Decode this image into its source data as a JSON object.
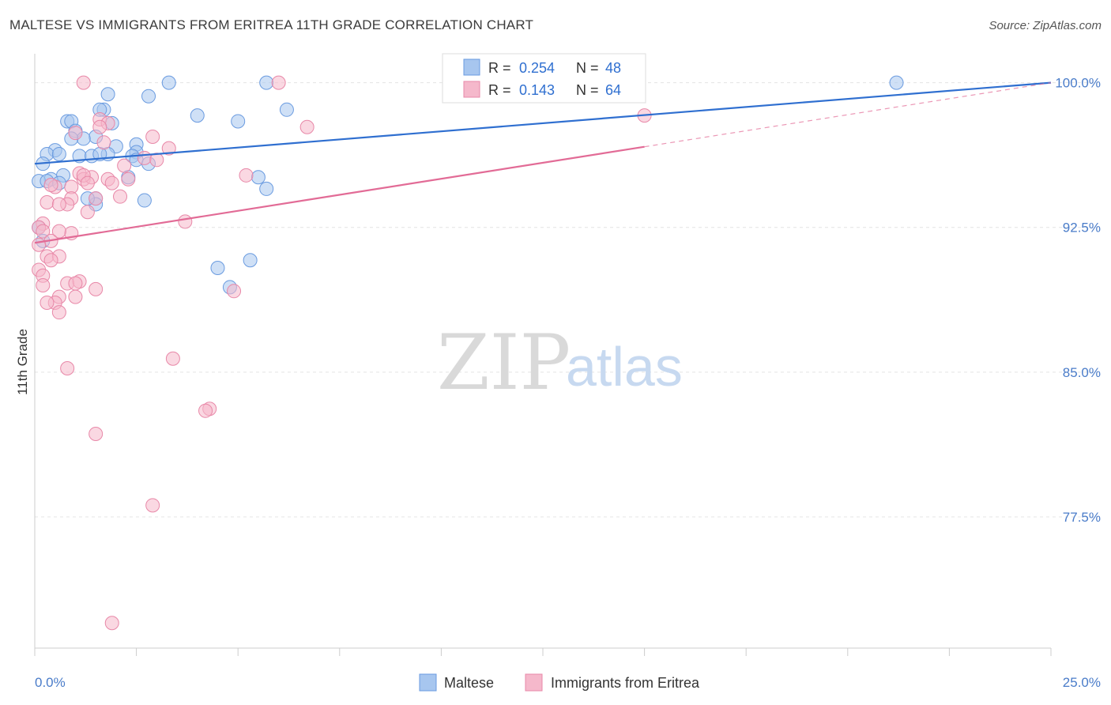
{
  "title": "MALTESE VS IMMIGRANTS FROM ERITREA 11TH GRADE CORRELATION CHART",
  "source": "Source: ZipAtlas.com",
  "watermark": {
    "zip": "ZIP",
    "atlas": "atlas"
  },
  "chart_data": {
    "type": "scatter",
    "ylabel": "11th Grade",
    "xlim": [
      0,
      25
    ],
    "ylim": [
      70.7,
      101.5
    ],
    "x_tick_labels": [
      "0.0%",
      "25.0%"
    ],
    "y_ticks": [
      100.0,
      92.5,
      85.0,
      77.5
    ],
    "y_tick_labels": [
      "100.0%",
      "92.5%",
      "85.0%",
      "77.5%"
    ],
    "grid": true,
    "legend_stats": [
      {
        "r_label": "R =",
        "r": "0.254",
        "n_label": "N =",
        "n": "48",
        "color": "#a7c6ef"
      },
      {
        "r_label": "R =",
        "r": "0.143",
        "n_label": "N =",
        "n": "64",
        "color": "#f5b8cb"
      }
    ],
    "series": [
      {
        "name": "Maltese",
        "color": "#a7c6ef",
        "stroke": "#6a9be0",
        "trend": {
          "color": "#2f6fd0",
          "x": [
            0,
            25
          ],
          "y": [
            95.8,
            100.0
          ],
          "solid_to": 25
        },
        "points": [
          [
            3.3,
            100.0
          ],
          [
            5.7,
            100.0
          ],
          [
            21.2,
            100.0
          ],
          [
            1.8,
            99.4
          ],
          [
            2.8,
            99.3
          ],
          [
            1.7,
            98.6
          ],
          [
            6.2,
            98.6
          ],
          [
            4.0,
            98.3
          ],
          [
            0.8,
            98.0
          ],
          [
            0.9,
            98.0
          ],
          [
            5.0,
            98.0
          ],
          [
            1.9,
            97.9
          ],
          [
            1.0,
            97.5
          ],
          [
            1.5,
            97.2
          ],
          [
            1.2,
            97.1
          ],
          [
            0.9,
            97.1
          ],
          [
            2.0,
            96.7
          ],
          [
            2.5,
            96.8
          ],
          [
            0.5,
            96.5
          ],
          [
            0.3,
            96.3
          ],
          [
            1.1,
            96.2
          ],
          [
            1.4,
            96.2
          ],
          [
            2.5,
            96.4
          ],
          [
            0.6,
            96.3
          ],
          [
            1.8,
            96.3
          ],
          [
            2.4,
            96.2
          ],
          [
            2.5,
            96.0
          ],
          [
            2.8,
            95.8
          ],
          [
            0.2,
            95.8
          ],
          [
            0.7,
            95.2
          ],
          [
            2.3,
            95.1
          ],
          [
            5.5,
            95.1
          ],
          [
            0.4,
            95.0
          ],
          [
            0.1,
            94.9
          ],
          [
            0.3,
            94.9
          ],
          [
            0.6,
            94.8
          ],
          [
            5.7,
            94.5
          ],
          [
            1.5,
            94.0
          ],
          [
            2.7,
            93.9
          ],
          [
            1.5,
            93.7
          ],
          [
            1.3,
            94.0
          ],
          [
            0.1,
            92.5
          ],
          [
            0.2,
            91.8
          ],
          [
            5.3,
            90.8
          ],
          [
            4.5,
            90.4
          ],
          [
            4.8,
            89.4
          ],
          [
            1.6,
            96.3
          ],
          [
            1.6,
            98.6
          ]
        ]
      },
      {
        "name": "Immigrants from Eritrea",
        "color": "#f5b8cb",
        "stroke": "#e888a8",
        "trend": {
          "color": "#e26b96",
          "x": [
            0,
            25
          ],
          "y": [
            91.7,
            100.0
          ],
          "solid_to": 15.0
        },
        "points": [
          [
            1.2,
            100.0
          ],
          [
            6.0,
            100.0
          ],
          [
            1.6,
            98.1
          ],
          [
            1.8,
            97.9
          ],
          [
            1.6,
            97.7
          ],
          [
            6.7,
            97.7
          ],
          [
            2.9,
            97.2
          ],
          [
            1.0,
            97.4
          ],
          [
            1.7,
            96.9
          ],
          [
            3.3,
            96.6
          ],
          [
            2.7,
            96.1
          ],
          [
            3.0,
            96.0
          ],
          [
            2.2,
            95.7
          ],
          [
            1.1,
            95.3
          ],
          [
            5.2,
            95.2
          ],
          [
            1.2,
            95.0
          ],
          [
            1.4,
            95.1
          ],
          [
            1.2,
            95.2
          ],
          [
            1.8,
            95.0
          ],
          [
            2.3,
            95.0
          ],
          [
            1.3,
            94.8
          ],
          [
            1.9,
            94.8
          ],
          [
            0.9,
            94.6
          ],
          [
            0.5,
            94.6
          ],
          [
            0.4,
            94.7
          ],
          [
            2.1,
            94.1
          ],
          [
            1.5,
            94.0
          ],
          [
            0.9,
            94.0
          ],
          [
            0.3,
            93.8
          ],
          [
            0.8,
            93.7
          ],
          [
            0.6,
            93.7
          ],
          [
            1.3,
            93.3
          ],
          [
            3.7,
            92.8
          ],
          [
            0.2,
            92.7
          ],
          [
            0.1,
            92.5
          ],
          [
            0.2,
            92.3
          ],
          [
            0.9,
            92.2
          ],
          [
            0.6,
            92.3
          ],
          [
            0.4,
            91.8
          ],
          [
            0.1,
            91.6
          ],
          [
            0.3,
            91.0
          ],
          [
            0.6,
            91.0
          ],
          [
            0.4,
            90.8
          ],
          [
            0.1,
            90.3
          ],
          [
            0.2,
            90.0
          ],
          [
            0.2,
            89.5
          ],
          [
            0.8,
            89.6
          ],
          [
            1.1,
            89.7
          ],
          [
            1.5,
            89.3
          ],
          [
            4.9,
            89.2
          ],
          [
            0.6,
            88.9
          ],
          [
            1.0,
            88.9
          ],
          [
            0.5,
            88.6
          ],
          [
            0.3,
            88.6
          ],
          [
            0.6,
            88.1
          ],
          [
            3.4,
            85.7
          ],
          [
            0.8,
            85.2
          ],
          [
            4.3,
            83.1
          ],
          [
            4.2,
            83.0
          ],
          [
            1.5,
            81.8
          ],
          [
            2.9,
            78.1
          ],
          [
            1.9,
            72.0
          ],
          [
            1.0,
            89.6
          ],
          [
            15.0,
            98.3
          ]
        ]
      }
    ]
  }
}
